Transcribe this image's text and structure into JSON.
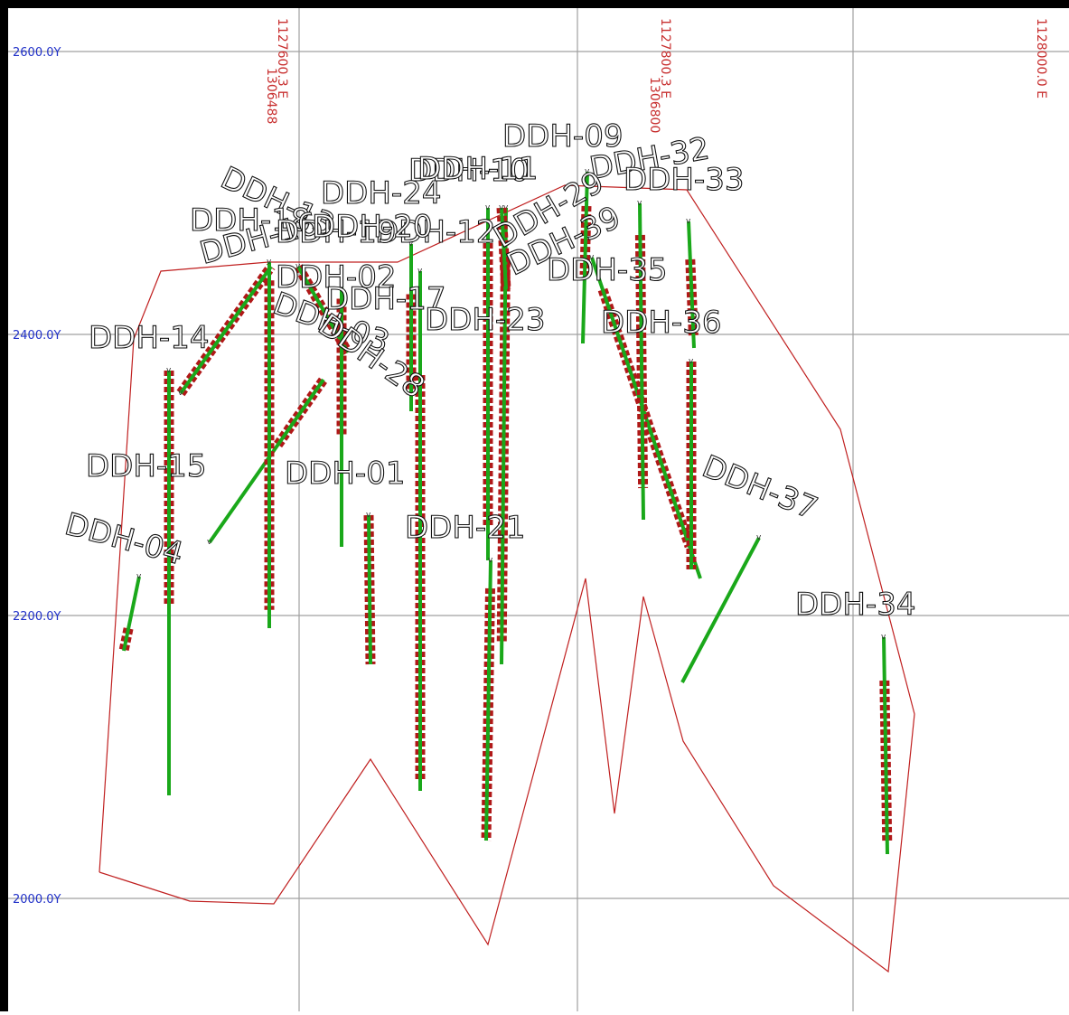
{
  "grid": {
    "y_labels": [
      "2600.0Y",
      "2400.0Y",
      "2200.0Y",
      "2000.0Y"
    ],
    "x_labels": [
      "1127600.3 E",
      "1127800.3 E",
      "1128000.0 E"
    ],
    "x_overlap_labels": [
      "1306488",
      "1306800"
    ]
  },
  "colors": {
    "grid": "#a0a0a0",
    "outline": "#c02020",
    "trace": "#1aa81a",
    "assay": "#b01818",
    "y_label": "#2030c8",
    "x_label": "#c83030"
  },
  "holes": [
    {
      "id": "ddh-09",
      "label": "DDH-09"
    },
    {
      "id": "ddh-10",
      "label": "DDH-10"
    },
    {
      "id": "ddh-11",
      "label": "DDH-11"
    },
    {
      "id": "ddh-32",
      "label": "DDH-32"
    },
    {
      "id": "ddh-33",
      "label": "DDH-33"
    },
    {
      "id": "ddh-24",
      "label": "DDH-24"
    },
    {
      "id": "ddh-12",
      "label": "DDH-12"
    },
    {
      "id": "ddh-13",
      "label": "DDH-13"
    },
    {
      "id": "ddh-18",
      "label": "DDH-18"
    },
    {
      "id": "ddh-16",
      "label": "DDH-16"
    },
    {
      "id": "ddh-19",
      "label": "DDH-19"
    },
    {
      "id": "ddh-20",
      "label": "DDH-20"
    },
    {
      "id": "ddh-29",
      "label": "DDH-29"
    },
    {
      "id": "ddh-39",
      "label": "DDH-39"
    },
    {
      "id": "ddh-35",
      "label": "DDH-35"
    },
    {
      "id": "ddh-02",
      "label": "DDH-02"
    },
    {
      "id": "ddh-03",
      "label": "DDH-03"
    },
    {
      "id": "ddh-17",
      "label": "DDH-17"
    },
    {
      "id": "ddh-23",
      "label": "DDH-23"
    },
    {
      "id": "ddh-36",
      "label": "DDH-36"
    },
    {
      "id": "ddh-14",
      "label": "DDH-14"
    },
    {
      "id": "ddh-28",
      "label": "DDH-28"
    },
    {
      "id": "ddh-15",
      "label": "DDH-15"
    },
    {
      "id": "ddh-01",
      "label": "DDH-01"
    },
    {
      "id": "ddh-21",
      "label": "DDH-21"
    },
    {
      "id": "ddh-04",
      "label": "DDH-04"
    },
    {
      "id": "ddh-37",
      "label": "DDH-37"
    },
    {
      "id": "ddh-34",
      "label": "DDH-34"
    }
  ]
}
